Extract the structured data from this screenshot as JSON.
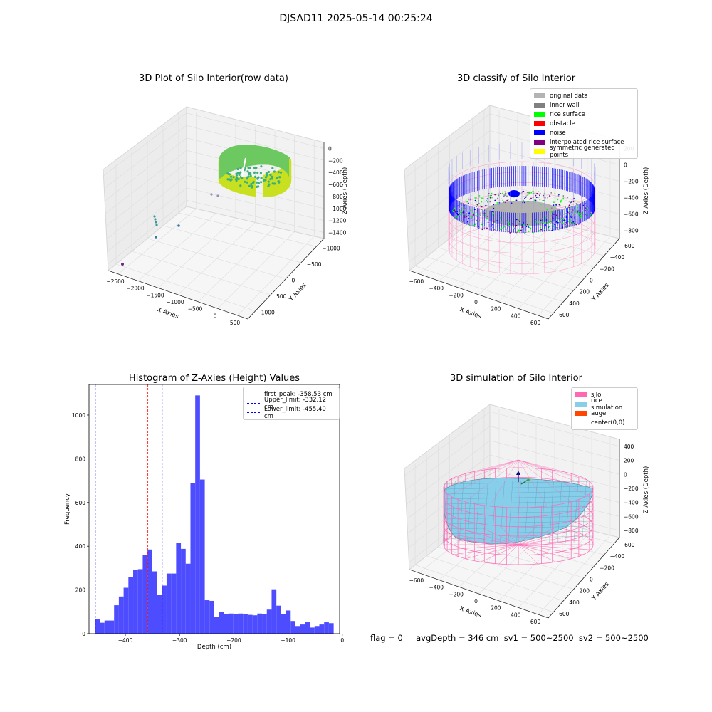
{
  "figure": {
    "suptitle": "DJSAD11 2025-05-14 00:25:24",
    "flag_text": "flag = 0     avgDepth = 346 cm  sv1 = 500~2500  sv2 = 500~2500"
  },
  "colors": {
    "histogram_bar": "#4d4dff",
    "first_peak_line": "#ff0000",
    "limit_lines": "#0000ff",
    "original_data": "#b3b3b3",
    "inner_wall": "#808080",
    "rice_surface": "#00ff00",
    "obstacle": "#ff0000",
    "noise": "#0000ff",
    "interpolated_rice_surface": "#800080",
    "symmetric_generated_points": "#ffff00",
    "silo": "#ff69b4",
    "rice_simulation": "#87ceeb",
    "auger": "#ff4500",
    "raw_points_low": "#2c8a8a",
    "raw_points_high": "#c8e020"
  },
  "chart_data": [
    {
      "type": "scatter",
      "title": "3D Plot of Silo Interior(row data)",
      "xlabel": "X Axies",
      "ylabel": "Y Axies",
      "zlabel": "Z Axies (Depth)",
      "xticks": [
        "−2500",
        "−2000",
        "−1500",
        "−1000",
        "−500",
        "0",
        "500"
      ],
      "yticks": [
        "1000",
        "500",
        "0",
        "−500",
        "−1000"
      ],
      "zticks": [
        "0",
        "−200",
        "−400",
        "−600",
        "−800",
        "−1000",
        "−1200",
        "−1400"
      ]
    },
    {
      "type": "scatter",
      "title": "3D classify of Silo Interior",
      "xlabel": "X Axies",
      "ylabel": "Y Axies",
      "zlabel": "Z Axies (Depth)",
      "xticks": [
        "−600",
        "−400",
        "−200",
        "0",
        "200",
        "400",
        "600"
      ],
      "yticks": [
        "600",
        "400",
        "200",
        "0",
        "−200",
        "−400",
        "−600"
      ],
      "zticks": [
        "200",
        "0",
        "−200",
        "−400",
        "−600",
        "−800"
      ],
      "legend": [
        {
          "label": "original data",
          "color": "#b3b3b3"
        },
        {
          "label": "inner wall",
          "color": "#808080"
        },
        {
          "label": "rice surface",
          "color": "#00ff00"
        },
        {
          "label": "obstacle",
          "color": "#ff0000"
        },
        {
          "label": "noise",
          "color": "#0000ff"
        },
        {
          "label": "interpolated rice surface",
          "color": "#800080"
        },
        {
          "label": "symmetric generated points",
          "color": "#ffff00"
        }
      ],
      "legend_position": "top-right"
    },
    {
      "type": "bar",
      "title": "Histogram of Z-Axies (Height) Values",
      "xlabel": "Depth (cm)",
      "ylabel": "Frequency",
      "xlim": [
        -467,
        -5
      ],
      "ylim": [
        0,
        1140
      ],
      "bin_start": -456,
      "bin_width": 8.8,
      "values": [
        65,
        50,
        60,
        60,
        130,
        170,
        210,
        260,
        290,
        295,
        360,
        385,
        285,
        178,
        220,
        275,
        275,
        415,
        388,
        320,
        690,
        1090,
        705,
        153,
        150,
        78,
        98,
        88,
        92,
        90,
        92,
        88,
        86,
        84,
        92,
        88,
        110,
        203,
        128,
        88,
        106,
        58,
        35,
        42,
        52,
        28,
        35,
        42,
        52,
        48
      ],
      "xticks": [
        -400,
        -300,
        -200,
        -100,
        0
      ],
      "xtick_labels": [
        "−400",
        "−300",
        "−200",
        "−100",
        "0"
      ],
      "yticks": [
        0,
        200,
        400,
        600,
        800,
        1000
      ],
      "vlines": [
        {
          "name": "first_peak",
          "x": -358.53,
          "color": "#ff0000",
          "label": "first_peak: -358.53 cm"
        },
        {
          "name": "upper_limit",
          "x": -332.12,
          "color": "#0000ff",
          "label": "Upper_limit: -332.12 cm"
        },
        {
          "name": "lower_limit",
          "x": -455.4,
          "color": "#0000ff",
          "label": "Lower_limit: -455.40 cm"
        }
      ],
      "legend_position": "top-right",
      "grid": false
    },
    {
      "type": "scatter",
      "title": "3D simulation of Silo Interior",
      "xlabel": "X Axies",
      "ylabel": "Y Axies",
      "zlabel": "Z Axies (Depth)",
      "xticks": [
        "−600",
        "−400",
        "−200",
        "0",
        "200",
        "400",
        "600"
      ],
      "yticks": [
        "600",
        "400",
        "200",
        "0",
        "−200",
        "−400",
        "−600"
      ],
      "zticks": [
        "400",
        "200",
        "0",
        "−200",
        "−400",
        "−600",
        "−800"
      ],
      "legend": [
        {
          "label": "silo",
          "color": "#ff69b4"
        },
        {
          "label": "rice simulation",
          "color": "#87ceeb"
        },
        {
          "label": "auger",
          "color": "#ff4500"
        },
        {
          "label": "center(0,0)",
          "color": ""
        }
      ],
      "legend_position": "top-right"
    }
  ]
}
